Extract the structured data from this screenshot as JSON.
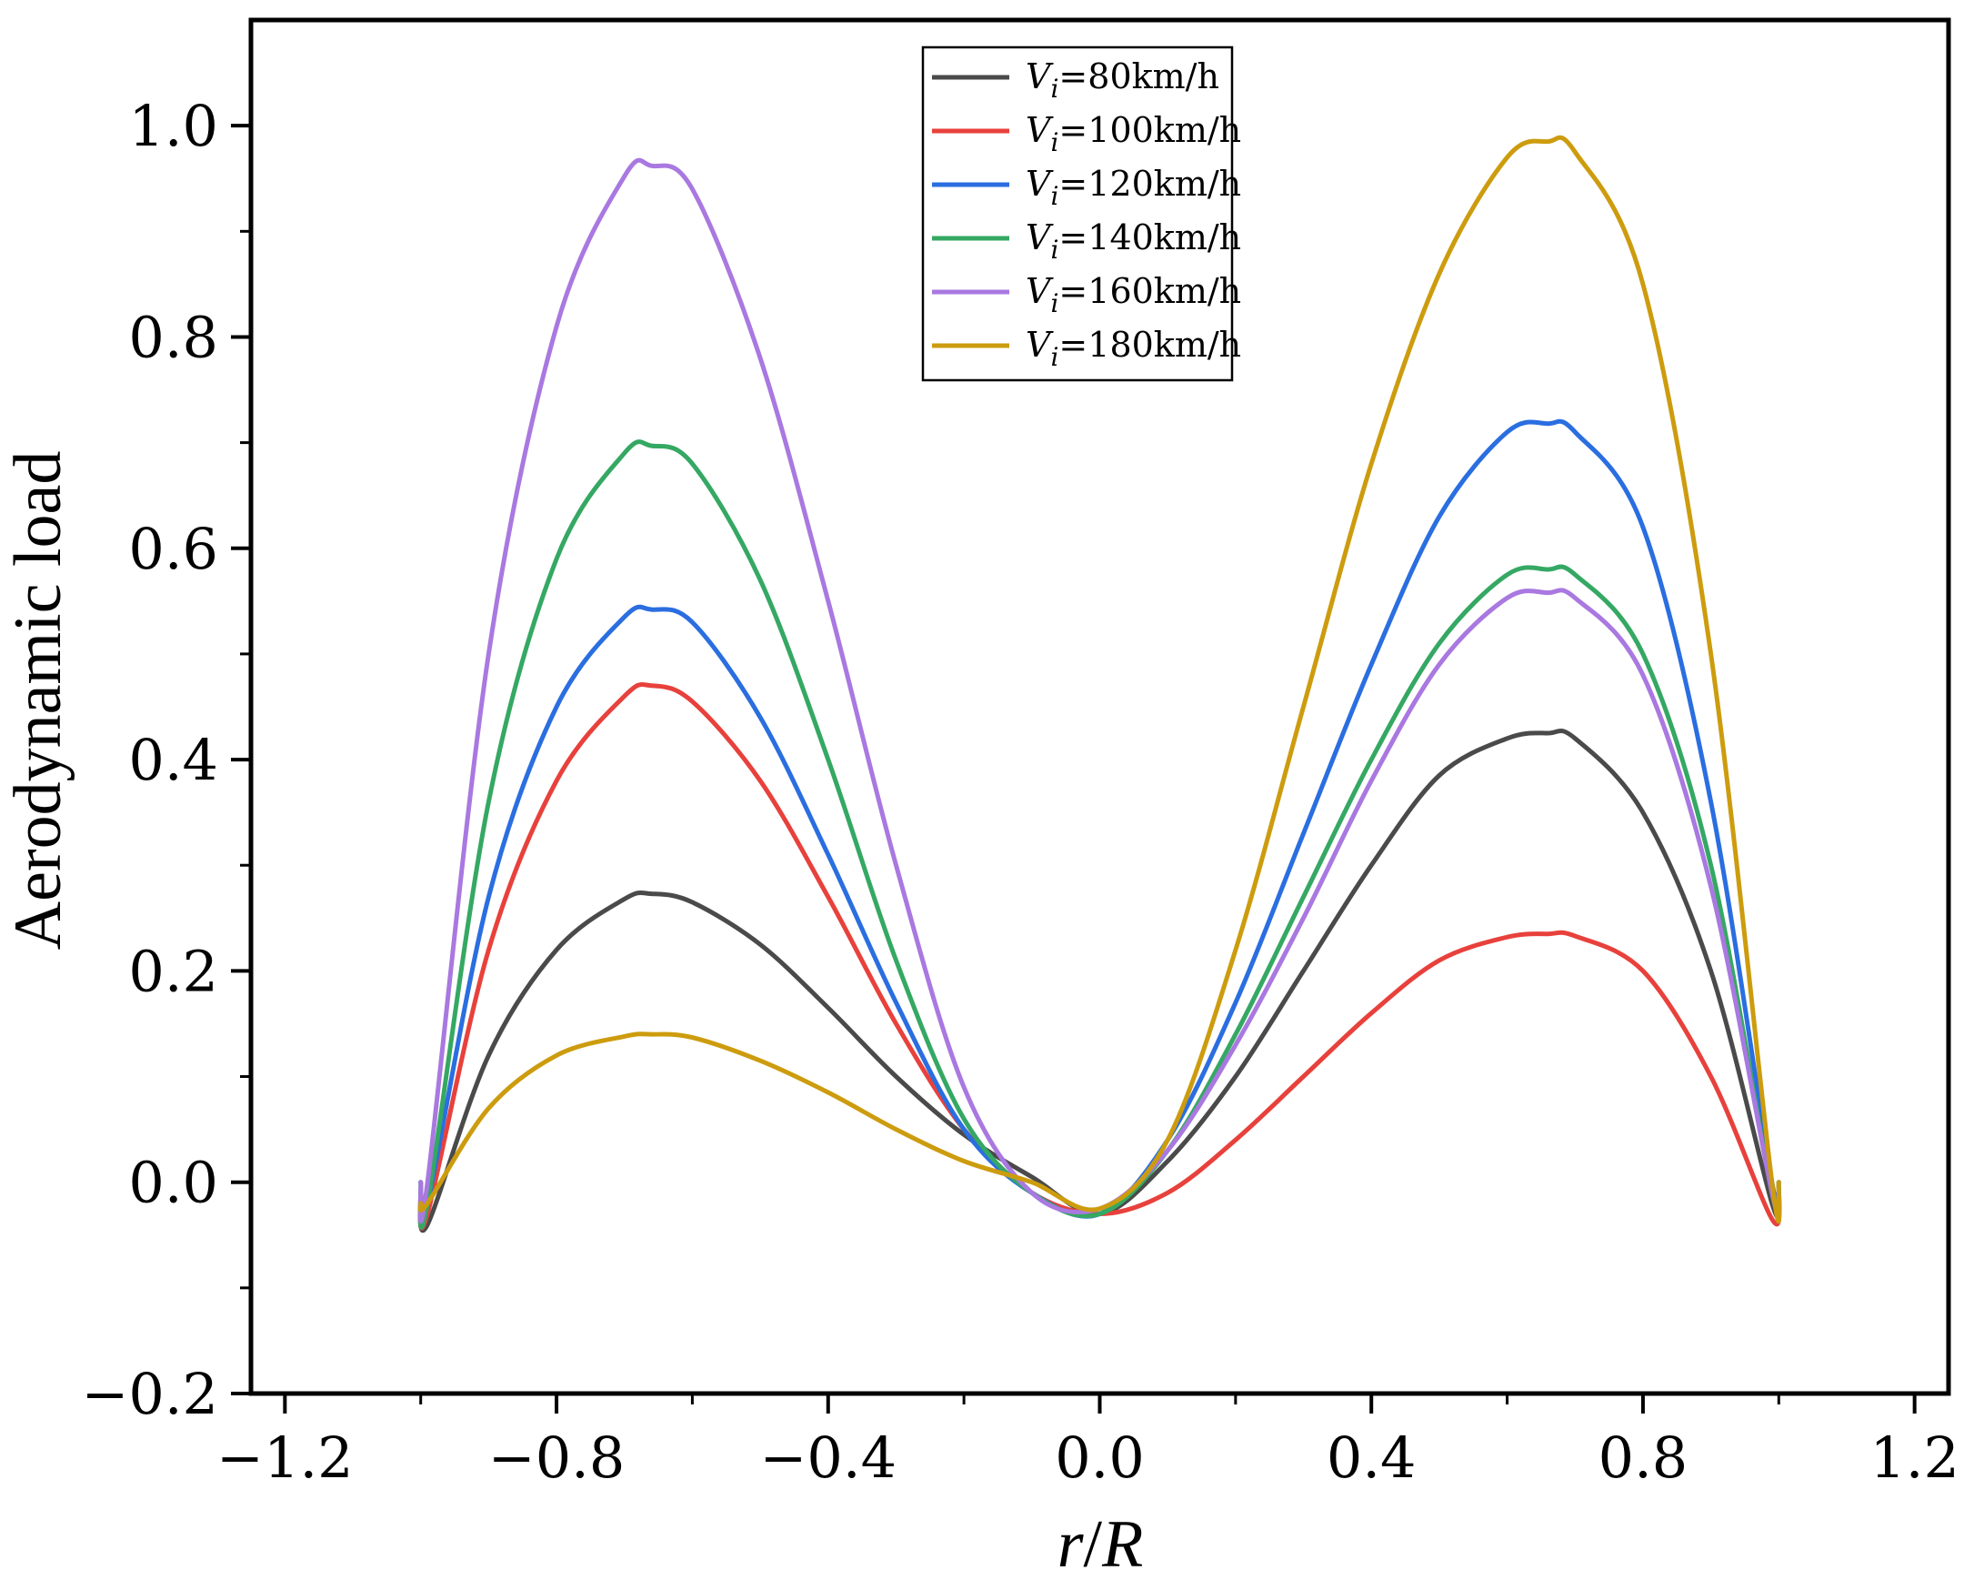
{
  "chart_data": {
    "type": "line",
    "title": "",
    "xlabel": "r/R",
    "xlabel_parts": {
      "var": "r",
      "sep": "/",
      "var2": "R"
    },
    "ylabel": "Aerodynamic load",
    "xlim": [
      -1.25,
      1.25
    ],
    "ylim": [
      -0.2,
      1.1
    ],
    "x_ticks": [
      -1.2,
      -0.8,
      -0.4,
      0.0,
      0.4,
      0.8,
      1.2
    ],
    "x_tick_labels": [
      "−1.2",
      "−0.8",
      "−0.4",
      "0.0",
      "0.4",
      "0.8",
      "1.2"
    ],
    "y_ticks": [
      -0.2,
      0.0,
      0.2,
      0.4,
      0.6,
      0.8,
      1.0
    ],
    "y_tick_labels": [
      "−0.2",
      "0.0",
      "0.2",
      "0.4",
      "0.6",
      "0.8",
      "1.0"
    ],
    "grid": false,
    "legend_position": "top-center",
    "series": [
      {
        "name": "V_i=80km/h",
        "label_var": "V",
        "label_sub": "i",
        "label_rest": "=80km/h",
        "color": "#4a4a4a",
        "x": [
          -1.0,
          -0.99,
          -0.9,
          -0.8,
          -0.7,
          -0.66,
          -0.6,
          -0.5,
          -0.4,
          -0.3,
          -0.2,
          -0.1,
          0.0,
          0.1,
          0.2,
          0.3,
          0.4,
          0.5,
          0.6,
          0.66,
          0.7,
          0.8,
          0.9,
          0.99,
          1.0
        ],
        "y": [
          -0.01,
          -0.04,
          0.12,
          0.22,
          0.268,
          0.273,
          0.265,
          0.225,
          0.165,
          0.1,
          0.045,
          0.005,
          -0.03,
          0.02,
          0.1,
          0.2,
          0.3,
          0.385,
          0.42,
          0.425,
          0.42,
          0.35,
          0.2,
          -0.02,
          -0.01
        ]
      },
      {
        "name": "V_i=100km/h",
        "label_var": "V",
        "label_sub": "i",
        "label_rest": "=100km/h",
        "color": "#e8413c",
        "x": [
          -1.0,
          -0.99,
          -0.9,
          -0.8,
          -0.7,
          -0.66,
          -0.6,
          -0.5,
          -0.4,
          -0.3,
          -0.2,
          -0.1,
          0.0,
          0.1,
          0.2,
          0.3,
          0.4,
          0.5,
          0.6,
          0.66,
          0.7,
          0.8,
          0.9,
          0.99,
          1.0
        ],
        "y": [
          -0.01,
          -0.03,
          0.22,
          0.38,
          0.46,
          0.47,
          0.455,
          0.38,
          0.27,
          0.15,
          0.05,
          -0.01,
          -0.03,
          -0.01,
          0.04,
          0.1,
          0.16,
          0.21,
          0.232,
          0.235,
          0.233,
          0.2,
          0.1,
          -0.035,
          -0.01
        ]
      },
      {
        "name": "V_i=120km/h",
        "label_var": "V",
        "label_sub": "i",
        "label_rest": "=120km/h",
        "color": "#2a6ee0",
        "x": [
          -1.0,
          -0.99,
          -0.9,
          -0.8,
          -0.7,
          -0.66,
          -0.6,
          -0.5,
          -0.4,
          -0.3,
          -0.2,
          -0.1,
          0.0,
          0.1,
          0.2,
          0.3,
          0.4,
          0.5,
          0.6,
          0.66,
          0.7,
          0.8,
          0.9,
          0.99,
          1.0
        ],
        "y": [
          0.0,
          -0.02,
          0.27,
          0.45,
          0.535,
          0.542,
          0.53,
          0.44,
          0.31,
          0.17,
          0.05,
          -0.01,
          -0.03,
          0.04,
          0.17,
          0.33,
          0.49,
          0.63,
          0.71,
          0.718,
          0.71,
          0.62,
          0.36,
          0.0,
          0.0
        ]
      },
      {
        "name": "V_i=140km/h",
        "label_var": "V",
        "label_sub": "i",
        "label_rest": "=140km/h",
        "color": "#35a863",
        "x": [
          -1.0,
          -0.99,
          -0.9,
          -0.8,
          -0.7,
          -0.66,
          -0.6,
          -0.5,
          -0.4,
          -0.3,
          -0.2,
          -0.1,
          0.0,
          0.1,
          0.2,
          0.3,
          0.4,
          0.5,
          0.6,
          0.66,
          0.7,
          0.8,
          0.9,
          0.99,
          1.0
        ],
        "y": [
          0.0,
          -0.02,
          0.36,
          0.59,
          0.69,
          0.697,
          0.68,
          0.57,
          0.4,
          0.21,
          0.06,
          -0.01,
          -0.03,
          0.03,
          0.14,
          0.27,
          0.4,
          0.51,
          0.575,
          0.58,
          0.575,
          0.5,
          0.3,
          -0.01,
          0.0
        ]
      },
      {
        "name": "V_i=160km/h",
        "label_var": "V",
        "label_sub": "i",
        "label_rest": "=160km/h",
        "color": "#a978e0",
        "x": [
          -1.0,
          -0.99,
          -0.9,
          -0.8,
          -0.7,
          -0.66,
          -0.6,
          -0.5,
          -0.4,
          -0.3,
          -0.2,
          -0.1,
          0.0,
          0.1,
          0.2,
          0.3,
          0.4,
          0.5,
          0.6,
          0.66,
          0.7,
          0.8,
          0.9,
          0.99,
          1.0
        ],
        "y": [
          0.0,
          0.0,
          0.5,
          0.81,
          0.952,
          0.962,
          0.94,
          0.78,
          0.55,
          0.3,
          0.09,
          -0.01,
          -0.025,
          0.03,
          0.13,
          0.25,
          0.38,
          0.49,
          0.553,
          0.558,
          0.553,
          0.48,
          0.28,
          -0.01,
          -0.01
        ]
      },
      {
        "name": "V_i=180km/h",
        "label_var": "V",
        "label_sub": "i",
        "label_rest": "=180km/h",
        "color": "#cd9c0e",
        "x": [
          -1.0,
          -0.99,
          -0.9,
          -0.8,
          -0.7,
          -0.66,
          -0.6,
          -0.5,
          -0.4,
          -0.3,
          -0.2,
          -0.1,
          0.0,
          0.1,
          0.2,
          0.3,
          0.4,
          0.5,
          0.6,
          0.66,
          0.7,
          0.8,
          0.9,
          0.99,
          1.0
        ],
        "y": [
          -0.02,
          -0.02,
          0.07,
          0.12,
          0.138,
          0.14,
          0.137,
          0.115,
          0.085,
          0.05,
          0.02,
          0.0,
          -0.025,
          0.04,
          0.22,
          0.45,
          0.68,
          0.86,
          0.97,
          0.985,
          0.975,
          0.85,
          0.5,
          0.0,
          0.0
        ]
      }
    ]
  }
}
